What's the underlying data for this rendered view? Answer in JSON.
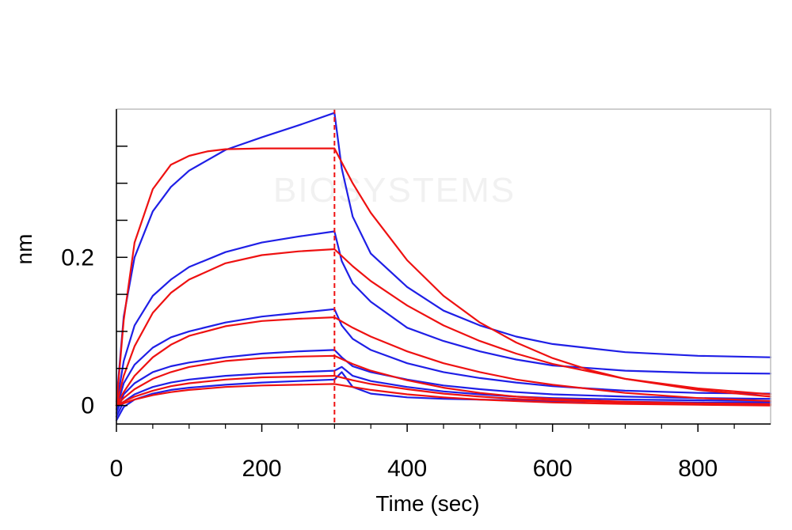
{
  "chart_data": {
    "type": "line",
    "title": "",
    "xlabel": "Time (sec)",
    "ylabel": "nm",
    "xlim": [
      0,
      900
    ],
    "ylim": [
      -0.025,
      0.4
    ],
    "x_ticks": [
      0,
      200,
      400,
      600,
      800
    ],
    "x_tick_labels": [
      "0",
      "200",
      "400",
      "600",
      "800"
    ],
    "y_ticks": [
      0,
      0.2
    ],
    "y_tick_labels": [
      "0",
      "0.2"
    ],
    "y_minor_ticks": [
      0.05,
      0.1,
      0.15,
      0.25,
      0.3,
      0.35
    ],
    "x_minor_ticks": [
      50,
      100,
      150,
      250,
      300,
      350,
      450,
      500,
      550,
      650,
      700,
      750,
      850
    ],
    "grid": false,
    "legend": "none",
    "dissociation_start": 300,
    "watermark": "BIOSYSTEMS",
    "colors": {
      "measured": "#1f1fe6",
      "fit": "#ee1111",
      "marker": "#ee1111"
    },
    "series": [
      {
        "kind": "measured",
        "x": [
          0,
          10,
          25,
          50,
          75,
          100,
          150,
          200,
          250,
          300,
          310,
          325,
          350,
          400,
          450,
          500,
          550,
          600,
          700,
          800,
          900
        ],
        "y": [
          0.005,
          0.12,
          0.2,
          0.262,
          0.295,
          0.317,
          0.345,
          0.362,
          0.378,
          0.395,
          0.32,
          0.255,
          0.205,
          0.16,
          0.128,
          0.108,
          0.093,
          0.083,
          0.072,
          0.067,
          0.065
        ]
      },
      {
        "kind": "measured",
        "x": [
          0,
          10,
          25,
          50,
          75,
          100,
          150,
          200,
          250,
          300,
          310,
          325,
          350,
          400,
          450,
          500,
          550,
          600,
          700,
          800,
          900
        ],
        "y": [
          0.0,
          0.06,
          0.108,
          0.148,
          0.17,
          0.187,
          0.207,
          0.22,
          0.228,
          0.235,
          0.195,
          0.165,
          0.14,
          0.105,
          0.087,
          0.073,
          0.062,
          0.054,
          0.047,
          0.044,
          0.043
        ]
      },
      {
        "kind": "measured",
        "x": [
          0,
          10,
          25,
          50,
          75,
          100,
          150,
          200,
          250,
          300,
          310,
          325,
          350,
          400,
          450,
          500,
          550,
          600,
          700,
          800,
          900
        ],
        "y": [
          -0.005,
          0.03,
          0.055,
          0.078,
          0.092,
          0.1,
          0.112,
          0.12,
          0.125,
          0.13,
          0.108,
          0.09,
          0.075,
          0.057,
          0.045,
          0.037,
          0.031,
          0.026,
          0.02,
          0.017,
          0.016
        ]
      },
      {
        "kind": "measured",
        "x": [
          0,
          10,
          25,
          50,
          75,
          100,
          150,
          200,
          250,
          300,
          310,
          325,
          350,
          400,
          450,
          500,
          550,
          600,
          700,
          800,
          900
        ],
        "y": [
          -0.01,
          0.015,
          0.03,
          0.045,
          0.053,
          0.058,
          0.065,
          0.07,
          0.073,
          0.075,
          0.065,
          0.053,
          0.045,
          0.035,
          0.027,
          0.022,
          0.018,
          0.015,
          0.012,
          0.01,
          0.009
        ]
      },
      {
        "kind": "measured",
        "x": [
          0,
          10,
          25,
          50,
          75,
          100,
          150,
          200,
          250,
          300,
          310,
          325,
          350,
          400,
          450,
          500,
          550,
          600,
          700,
          800,
          900
        ],
        "y": [
          -0.015,
          0.005,
          0.015,
          0.025,
          0.031,
          0.035,
          0.04,
          0.043,
          0.045,
          0.047,
          0.052,
          0.04,
          0.033,
          0.025,
          0.019,
          0.015,
          0.012,
          0.01,
          0.008,
          0.007,
          0.006
        ]
      },
      {
        "kind": "measured",
        "x": [
          0,
          10,
          25,
          50,
          75,
          100,
          150,
          200,
          250,
          300,
          310,
          325,
          350,
          400,
          450,
          500,
          550,
          600,
          700,
          800,
          900
        ],
        "y": [
          -0.02,
          -0.002,
          0.008,
          0.016,
          0.021,
          0.024,
          0.028,
          0.031,
          0.033,
          0.035,
          0.045,
          0.025,
          0.016,
          0.011,
          0.009,
          0.008,
          0.007,
          0.006,
          0.005,
          0.004,
          0.004
        ]
      },
      {
        "kind": "fit",
        "x": [
          0,
          10,
          25,
          50,
          75,
          100,
          125,
          150,
          200,
          250,
          300,
          325,
          350,
          400,
          450,
          500,
          550,
          600,
          650,
          700,
          800,
          900
        ],
        "y": [
          0.0,
          0.115,
          0.22,
          0.292,
          0.325,
          0.337,
          0.343,
          0.346,
          0.347,
          0.347,
          0.347,
          0.3,
          0.26,
          0.196,
          0.148,
          0.112,
          0.085,
          0.064,
          0.048,
          0.036,
          0.021,
          0.012
        ]
      },
      {
        "kind": "fit",
        "x": [
          0,
          10,
          25,
          50,
          75,
          100,
          150,
          200,
          250,
          300,
          325,
          350,
          400,
          450,
          500,
          550,
          600,
          700,
          800,
          900
        ],
        "y": [
          0.0,
          0.04,
          0.08,
          0.125,
          0.152,
          0.17,
          0.192,
          0.203,
          0.208,
          0.211,
          0.188,
          0.168,
          0.135,
          0.108,
          0.087,
          0.07,
          0.056,
          0.036,
          0.023,
          0.015
        ]
      },
      {
        "kind": "fit",
        "x": [
          0,
          10,
          25,
          50,
          75,
          100,
          150,
          200,
          250,
          300,
          325,
          350,
          400,
          450,
          500,
          550,
          600,
          700,
          800,
          900
        ],
        "y": [
          0.0,
          0.018,
          0.04,
          0.065,
          0.082,
          0.094,
          0.107,
          0.114,
          0.117,
          0.119,
          0.105,
          0.093,
          0.073,
          0.057,
          0.045,
          0.035,
          0.028,
          0.017,
          0.01,
          0.006
        ]
      },
      {
        "kind": "fit",
        "x": [
          0,
          10,
          25,
          50,
          75,
          100,
          150,
          200,
          250,
          300,
          325,
          350,
          400,
          450,
          500,
          550,
          600,
          700,
          800,
          900
        ],
        "y": [
          0.0,
          0.01,
          0.022,
          0.036,
          0.045,
          0.052,
          0.06,
          0.064,
          0.066,
          0.067,
          0.056,
          0.047,
          0.034,
          0.024,
          0.017,
          0.012,
          0.009,
          0.005,
          0.003,
          0.002
        ]
      },
      {
        "kind": "fit",
        "x": [
          0,
          10,
          25,
          50,
          75,
          100,
          150,
          200,
          250,
          300,
          325,
          350,
          400,
          450,
          500,
          550,
          600,
          700,
          800,
          900
        ],
        "y": [
          0.0,
          0.005,
          0.012,
          0.02,
          0.026,
          0.03,
          0.035,
          0.038,
          0.039,
          0.04,
          0.034,
          0.029,
          0.022,
          0.016,
          0.012,
          0.009,
          0.007,
          0.004,
          0.002,
          0.001
        ]
      },
      {
        "kind": "fit",
        "x": [
          0,
          10,
          25,
          50,
          75,
          100,
          150,
          200,
          250,
          300,
          325,
          350,
          400,
          450,
          500,
          550,
          600,
          700,
          800,
          900
        ],
        "y": [
          0.0,
          0.003,
          0.008,
          0.014,
          0.018,
          0.021,
          0.025,
          0.027,
          0.028,
          0.029,
          0.025,
          0.021,
          0.015,
          0.011,
          0.008,
          0.006,
          0.004,
          0.002,
          0.001,
          0.0
        ]
      }
    ]
  }
}
